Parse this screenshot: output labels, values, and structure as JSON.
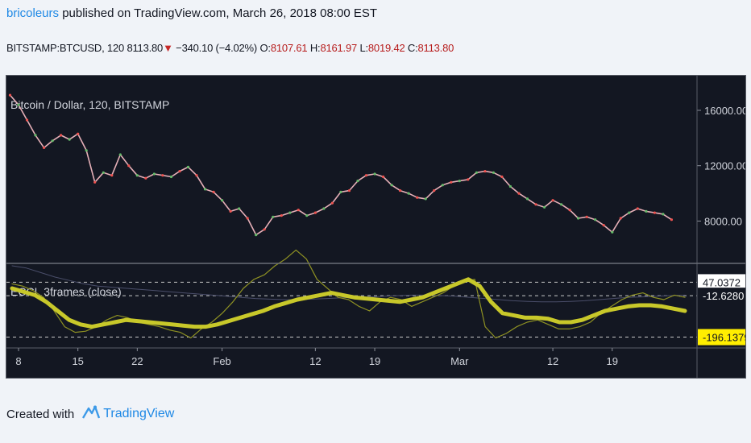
{
  "header": {
    "username": "bricoleurs",
    "published_text": " published on TradingView.com, March 26, 2018 08:00 EST",
    "symbol_interval": "BITSTAMP:BTCUSD, 120",
    "last_price": "8113.80",
    "change": "−340.10 (−4.02%)",
    "open_label": "O:",
    "open": "8107.61",
    "high_label": "H:",
    "high": "8161.97",
    "low_label": "L:",
    "low": "8019.42",
    "close_label": "C:",
    "close": "8113.80"
  },
  "footer": {
    "created_with": "Created with",
    "brand": "TradingView"
  },
  "chart_data": [
    {
      "type": "line",
      "title": "Bitcoin / Dollar, 120, BITSTAMP",
      "y_ticks": [
        "16000.00",
        "12000.00",
        "8000.00"
      ],
      "y_tick_values": [
        16000,
        12000,
        8000
      ],
      "ylim": [
        5000,
        18500
      ],
      "x_ticks": [
        "8",
        "15",
        "22",
        "Feb",
        "12",
        "19",
        "Mar",
        "12",
        "19"
      ],
      "x_tick_dates": [
        "2018-01-08",
        "2018-01-15",
        "2018-01-22",
        "2018-02-01",
        "2018-02-12",
        "2018-02-19",
        "2018-03-01",
        "2018-03-12",
        "2018-03-19"
      ],
      "xlim": [
        "2018-01-08",
        "2018-03-29"
      ],
      "grid": false,
      "series": [
        {
          "name": "BTCUSD",
          "color": "#e6b0b8",
          "x": [
            "2018-01-07",
            "2018-01-08",
            "2018-01-09",
            "2018-01-10",
            "2018-01-11",
            "2018-01-12",
            "2018-01-13",
            "2018-01-14",
            "2018-01-15",
            "2018-01-16",
            "2018-01-17",
            "2018-01-18",
            "2018-01-19",
            "2018-01-20",
            "2018-01-21",
            "2018-01-22",
            "2018-01-23",
            "2018-01-24",
            "2018-01-25",
            "2018-01-26",
            "2018-01-27",
            "2018-01-28",
            "2018-01-29",
            "2018-01-30",
            "2018-01-31",
            "2018-02-01",
            "2018-02-02",
            "2018-02-03",
            "2018-02-04",
            "2018-02-05",
            "2018-02-06",
            "2018-02-07",
            "2018-02-08",
            "2018-02-09",
            "2018-02-10",
            "2018-02-11",
            "2018-02-12",
            "2018-02-13",
            "2018-02-14",
            "2018-02-15",
            "2018-02-16",
            "2018-02-17",
            "2018-02-18",
            "2018-02-19",
            "2018-02-20",
            "2018-02-21",
            "2018-02-22",
            "2018-02-23",
            "2018-02-24",
            "2018-02-25",
            "2018-02-26",
            "2018-02-27",
            "2018-02-28",
            "2018-03-01",
            "2018-03-02",
            "2018-03-03",
            "2018-03-04",
            "2018-03-05",
            "2018-03-06",
            "2018-03-07",
            "2018-03-08",
            "2018-03-09",
            "2018-03-10",
            "2018-03-11",
            "2018-03-12",
            "2018-03-13",
            "2018-03-14",
            "2018-03-15",
            "2018-03-16",
            "2018-03-17",
            "2018-03-18",
            "2018-03-19",
            "2018-03-20",
            "2018-03-21",
            "2018-03-22",
            "2018-03-23",
            "2018-03-24",
            "2018-03-25",
            "2018-03-26"
          ],
          "values": [
            17100,
            16400,
            15300,
            14200,
            13300,
            13800,
            14200,
            13900,
            14300,
            13100,
            10800,
            11500,
            11300,
            12800,
            12000,
            11300,
            11100,
            11400,
            11300,
            11200,
            11600,
            11900,
            11300,
            10300,
            10100,
            9500,
            8700,
            8900,
            8200,
            7000,
            7400,
            8300,
            8400,
            8600,
            8800,
            8400,
            8600,
            8900,
            9300,
            10100,
            10200,
            10900,
            11300,
            11400,
            11200,
            10600,
            10200,
            10000,
            9700,
            9600,
            10200,
            10600,
            10800,
            10900,
            11000,
            11500,
            11600,
            11500,
            11200,
            10500,
            10000,
            9600,
            9200,
            9000,
            9500,
            9200,
            8800,
            8200,
            8300,
            8100,
            7700,
            7200,
            8200,
            8600,
            8900,
            8700,
            8600,
            8500,
            8100
          ]
        }
      ]
    },
    {
      "type": "line",
      "title": "ECCI_3frames (close)",
      "y_ticks": [
        "47.0372",
        "-12.6280",
        "-196.1379"
      ],
      "y_tick_values": [
        47.0372,
        -12.628,
        -196.1379
      ],
      "x_ticks": [
        "8",
        "15",
        "22",
        "Feb",
        "12",
        "19",
        "Mar",
        "12",
        "19"
      ],
      "grid": false,
      "series": [
        {
          "name": "fast",
          "color": "#8f9223",
          "values": [
            40,
            30,
            10,
            -20,
            -80,
            -150,
            -175,
            -170,
            -150,
            -120,
            -100,
            -110,
            -130,
            -140,
            -150,
            -165,
            -175,
            -200,
            -160,
            -130,
            -90,
            -40,
            20,
            60,
            80,
            120,
            150,
            190,
            150,
            60,
            20,
            -20,
            -30,
            -60,
            -80,
            -40,
            -20,
            -30,
            -60,
            -40,
            -20,
            0,
            30,
            50,
            60,
            -150,
            -200,
            -180,
            -150,
            -130,
            -120,
            -140,
            -160,
            -160,
            -150,
            -130,
            -90,
            -60,
            -30,
            -10,
            0,
            -20,
            -30,
            -10,
            -20
          ]
        },
        {
          "name": "thick",
          "color": "#c8c82a",
          "values": [
            20,
            5,
            -10,
            -40,
            -80,
            -120,
            -140,
            -150,
            -140,
            -130,
            -120,
            -125,
            -130,
            -135,
            -140,
            -145,
            -150,
            -150,
            -140,
            -125,
            -110,
            -95,
            -80,
            -60,
            -45,
            -30,
            -20,
            -10,
            0,
            -10,
            -20,
            -25,
            -30,
            -35,
            -40,
            -30,
            -20,
            0,
            20,
            40,
            60,
            30,
            -40,
            -90,
            -100,
            -110,
            -110,
            -115,
            -130,
            -130,
            -120,
            -100,
            -80,
            -70,
            -60,
            -55,
            -55,
            -60,
            -70,
            -80
          ]
        },
        {
          "name": "slow",
          "color": "#4a4e6a",
          "values": [
            120,
            110,
            90,
            70,
            55,
            40,
            30,
            25,
            20,
            15,
            10,
            5,
            0,
            -5,
            -10,
            -15,
            -20,
            -25,
            -28,
            -30,
            -30,
            -28,
            -25,
            -22,
            -20,
            -18,
            -15,
            -12,
            -10,
            -10,
            -12,
            -15,
            -20,
            -25,
            -30,
            -35,
            -38,
            -40,
            -40,
            -38,
            -35,
            -30,
            -25,
            -20,
            -18,
            -15,
            -12,
            -10
          ]
        }
      ]
    }
  ]
}
